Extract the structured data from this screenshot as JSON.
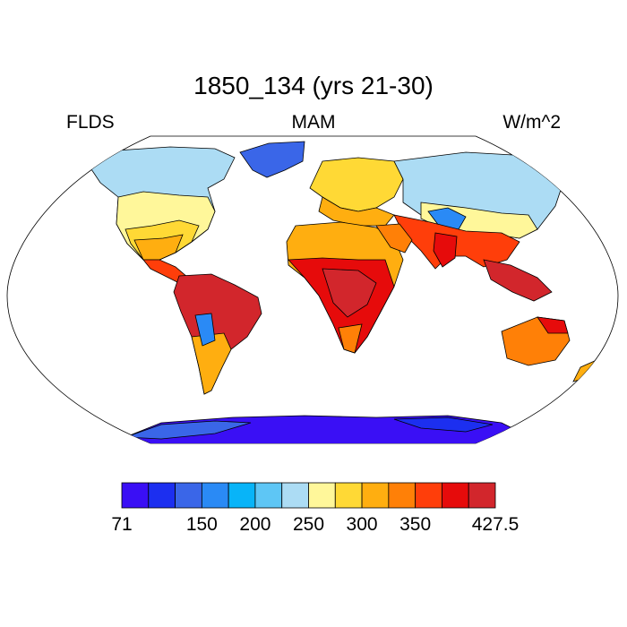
{
  "title": "1850_134 (yrs 21-30)",
  "left_label": "FLDS",
  "center_label": "MAM",
  "right_label": "W/m^2",
  "colorbar": {
    "colors": [
      "#3a0ff5",
      "#1c2ff0",
      "#3a66e8",
      "#2a8af5",
      "#08b4f8",
      "#5ec6f5",
      "#acdcf4",
      "#fff79a",
      "#ffd935",
      "#ffae10",
      "#ff8007",
      "#ff3e0a",
      "#e60b0b",
      "#d2262c"
    ],
    "tick_labels": [
      "71",
      "150",
      "200",
      "250",
      "300",
      "350",
      "427.5"
    ],
    "tick_boundary_index": [
      0,
      3,
      5,
      7,
      9,
      11,
      14
    ]
  },
  "map_legend": {
    "ocean_color": "#ffffff",
    "coast_color": "#000000"
  }
}
